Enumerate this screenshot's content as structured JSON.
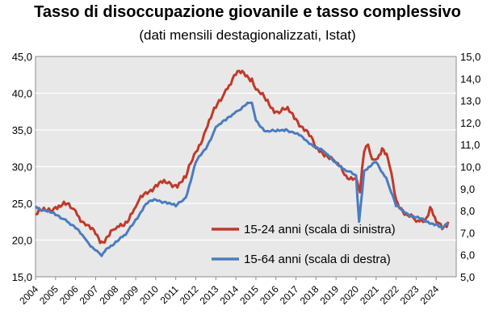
{
  "chart_data": {
    "type": "line",
    "title": "Tasso di disoccupazione giovanile e tasso complessivo",
    "subtitle": "(dati mensili destagionalizzati, Istat)",
    "colors": {
      "plot_background": "#e8e8e8",
      "gridline": "#ffffff"
    },
    "x_ticks": [
      "2004",
      "2005",
      "2006",
      "2007",
      "2008",
      "2009",
      "2010",
      "2011",
      "2012",
      "2013",
      "2014",
      "2015",
      "2016",
      "2017",
      "2018",
      "2019",
      "2020",
      "2021",
      "2022",
      "2023",
      "2024"
    ],
    "y_left": {
      "range": [
        15,
        45
      ],
      "ticks": [
        "15,0",
        "20,0",
        "25,0",
        "30,0",
        "35,0",
        "40,0",
        "45,0"
      ]
    },
    "y_right": {
      "range": [
        5,
        15
      ],
      "ticks": [
        "5,0",
        "6,0",
        "7,0",
        "8,0",
        "9,0",
        "10,0",
        "11,0",
        "12,0",
        "13,0",
        "14,0",
        "15,0"
      ]
    },
    "legend_position": "lower-right",
    "grid": true,
    "series": [
      {
        "name": "15-24 anni (scala di sinistra)",
        "axis": "left",
        "color": "#c0392b",
        "points": [
          [
            2004.0,
            23.5
          ],
          [
            2004.5,
            24.0
          ],
          [
            2005.0,
            24.5
          ],
          [
            2005.5,
            24.8
          ],
          [
            2006.0,
            24.0
          ],
          [
            2006.5,
            22.0
          ],
          [
            2007.0,
            20.8
          ],
          [
            2007.3,
            19.8
          ],
          [
            2007.6,
            20.5
          ],
          [
            2008.0,
            21.5
          ],
          [
            2008.5,
            22.5
          ],
          [
            2009.0,
            24.5
          ],
          [
            2009.5,
            26.5
          ],
          [
            2010.0,
            27.5
          ],
          [
            2010.5,
            27.8
          ],
          [
            2011.0,
            27.5
          ],
          [
            2011.5,
            28.5
          ],
          [
            2012.0,
            32.0
          ],
          [
            2012.5,
            35.0
          ],
          [
            2013.0,
            38.0
          ],
          [
            2013.5,
            40.5
          ],
          [
            2014.0,
            42.5
          ],
          [
            2014.4,
            42.8
          ],
          [
            2014.8,
            42.0
          ],
          [
            2015.0,
            40.5
          ],
          [
            2015.5,
            39.0
          ],
          [
            2016.0,
            37.5
          ],
          [
            2016.5,
            37.8
          ],
          [
            2017.0,
            36.5
          ],
          [
            2017.5,
            35.0
          ],
          [
            2018.0,
            32.5
          ],
          [
            2018.5,
            31.8
          ],
          [
            2019.0,
            30.5
          ],
          [
            2019.5,
            28.8
          ],
          [
            2020.0,
            28.5
          ],
          [
            2020.2,
            26.5
          ],
          [
            2020.4,
            32.0
          ],
          [
            2020.6,
            33.0
          ],
          [
            2020.8,
            31.0
          ],
          [
            2021.0,
            31.0
          ],
          [
            2021.3,
            32.5
          ],
          [
            2021.6,
            31.0
          ],
          [
            2022.0,
            25.5
          ],
          [
            2022.5,
            23.5
          ],
          [
            2023.0,
            22.5
          ],
          [
            2023.5,
            23.0
          ],
          [
            2023.7,
            24.5
          ],
          [
            2024.0,
            22.5
          ],
          [
            2024.3,
            21.5
          ],
          [
            2024.6,
            22.5
          ]
        ]
      },
      {
        "name": "15-64 anni (scala di destra)",
        "axis": "right",
        "color": "#4a7cc0",
        "points": [
          [
            2004.0,
            8.2
          ],
          [
            2004.5,
            8.0
          ],
          [
            2005.0,
            7.8
          ],
          [
            2005.5,
            7.6
          ],
          [
            2006.0,
            7.2
          ],
          [
            2006.5,
            6.7
          ],
          [
            2007.0,
            6.2
          ],
          [
            2007.3,
            5.95
          ],
          [
            2007.6,
            6.3
          ],
          [
            2008.0,
            6.6
          ],
          [
            2008.5,
            6.9
          ],
          [
            2009.0,
            7.6
          ],
          [
            2009.5,
            8.3
          ],
          [
            2010.0,
            8.5
          ],
          [
            2010.5,
            8.4
          ],
          [
            2011.0,
            8.2
          ],
          [
            2011.5,
            8.6
          ],
          [
            2012.0,
            10.2
          ],
          [
            2012.5,
            10.8
          ],
          [
            2013.0,
            11.8
          ],
          [
            2013.5,
            12.1
          ],
          [
            2014.0,
            12.5
          ],
          [
            2014.5,
            12.8
          ],
          [
            2014.8,
            12.9
          ],
          [
            2015.0,
            12.1
          ],
          [
            2015.5,
            11.6
          ],
          [
            2016.0,
            11.6
          ],
          [
            2016.5,
            11.7
          ],
          [
            2017.0,
            11.5
          ],
          [
            2017.5,
            11.2
          ],
          [
            2018.0,
            10.9
          ],
          [
            2018.5,
            10.6
          ],
          [
            2019.0,
            10.2
          ],
          [
            2019.5,
            9.8
          ],
          [
            2020.0,
            9.6
          ],
          [
            2020.15,
            7.5
          ],
          [
            2020.4,
            9.8
          ],
          [
            2020.7,
            10.0
          ],
          [
            2021.0,
            10.2
          ],
          [
            2021.5,
            9.5
          ],
          [
            2022.0,
            8.2
          ],
          [
            2022.5,
            7.9
          ],
          [
            2023.0,
            7.7
          ],
          [
            2023.5,
            7.5
          ],
          [
            2024.0,
            7.4
          ],
          [
            2024.3,
            7.2
          ],
          [
            2024.6,
            7.4
          ]
        ]
      }
    ]
  }
}
